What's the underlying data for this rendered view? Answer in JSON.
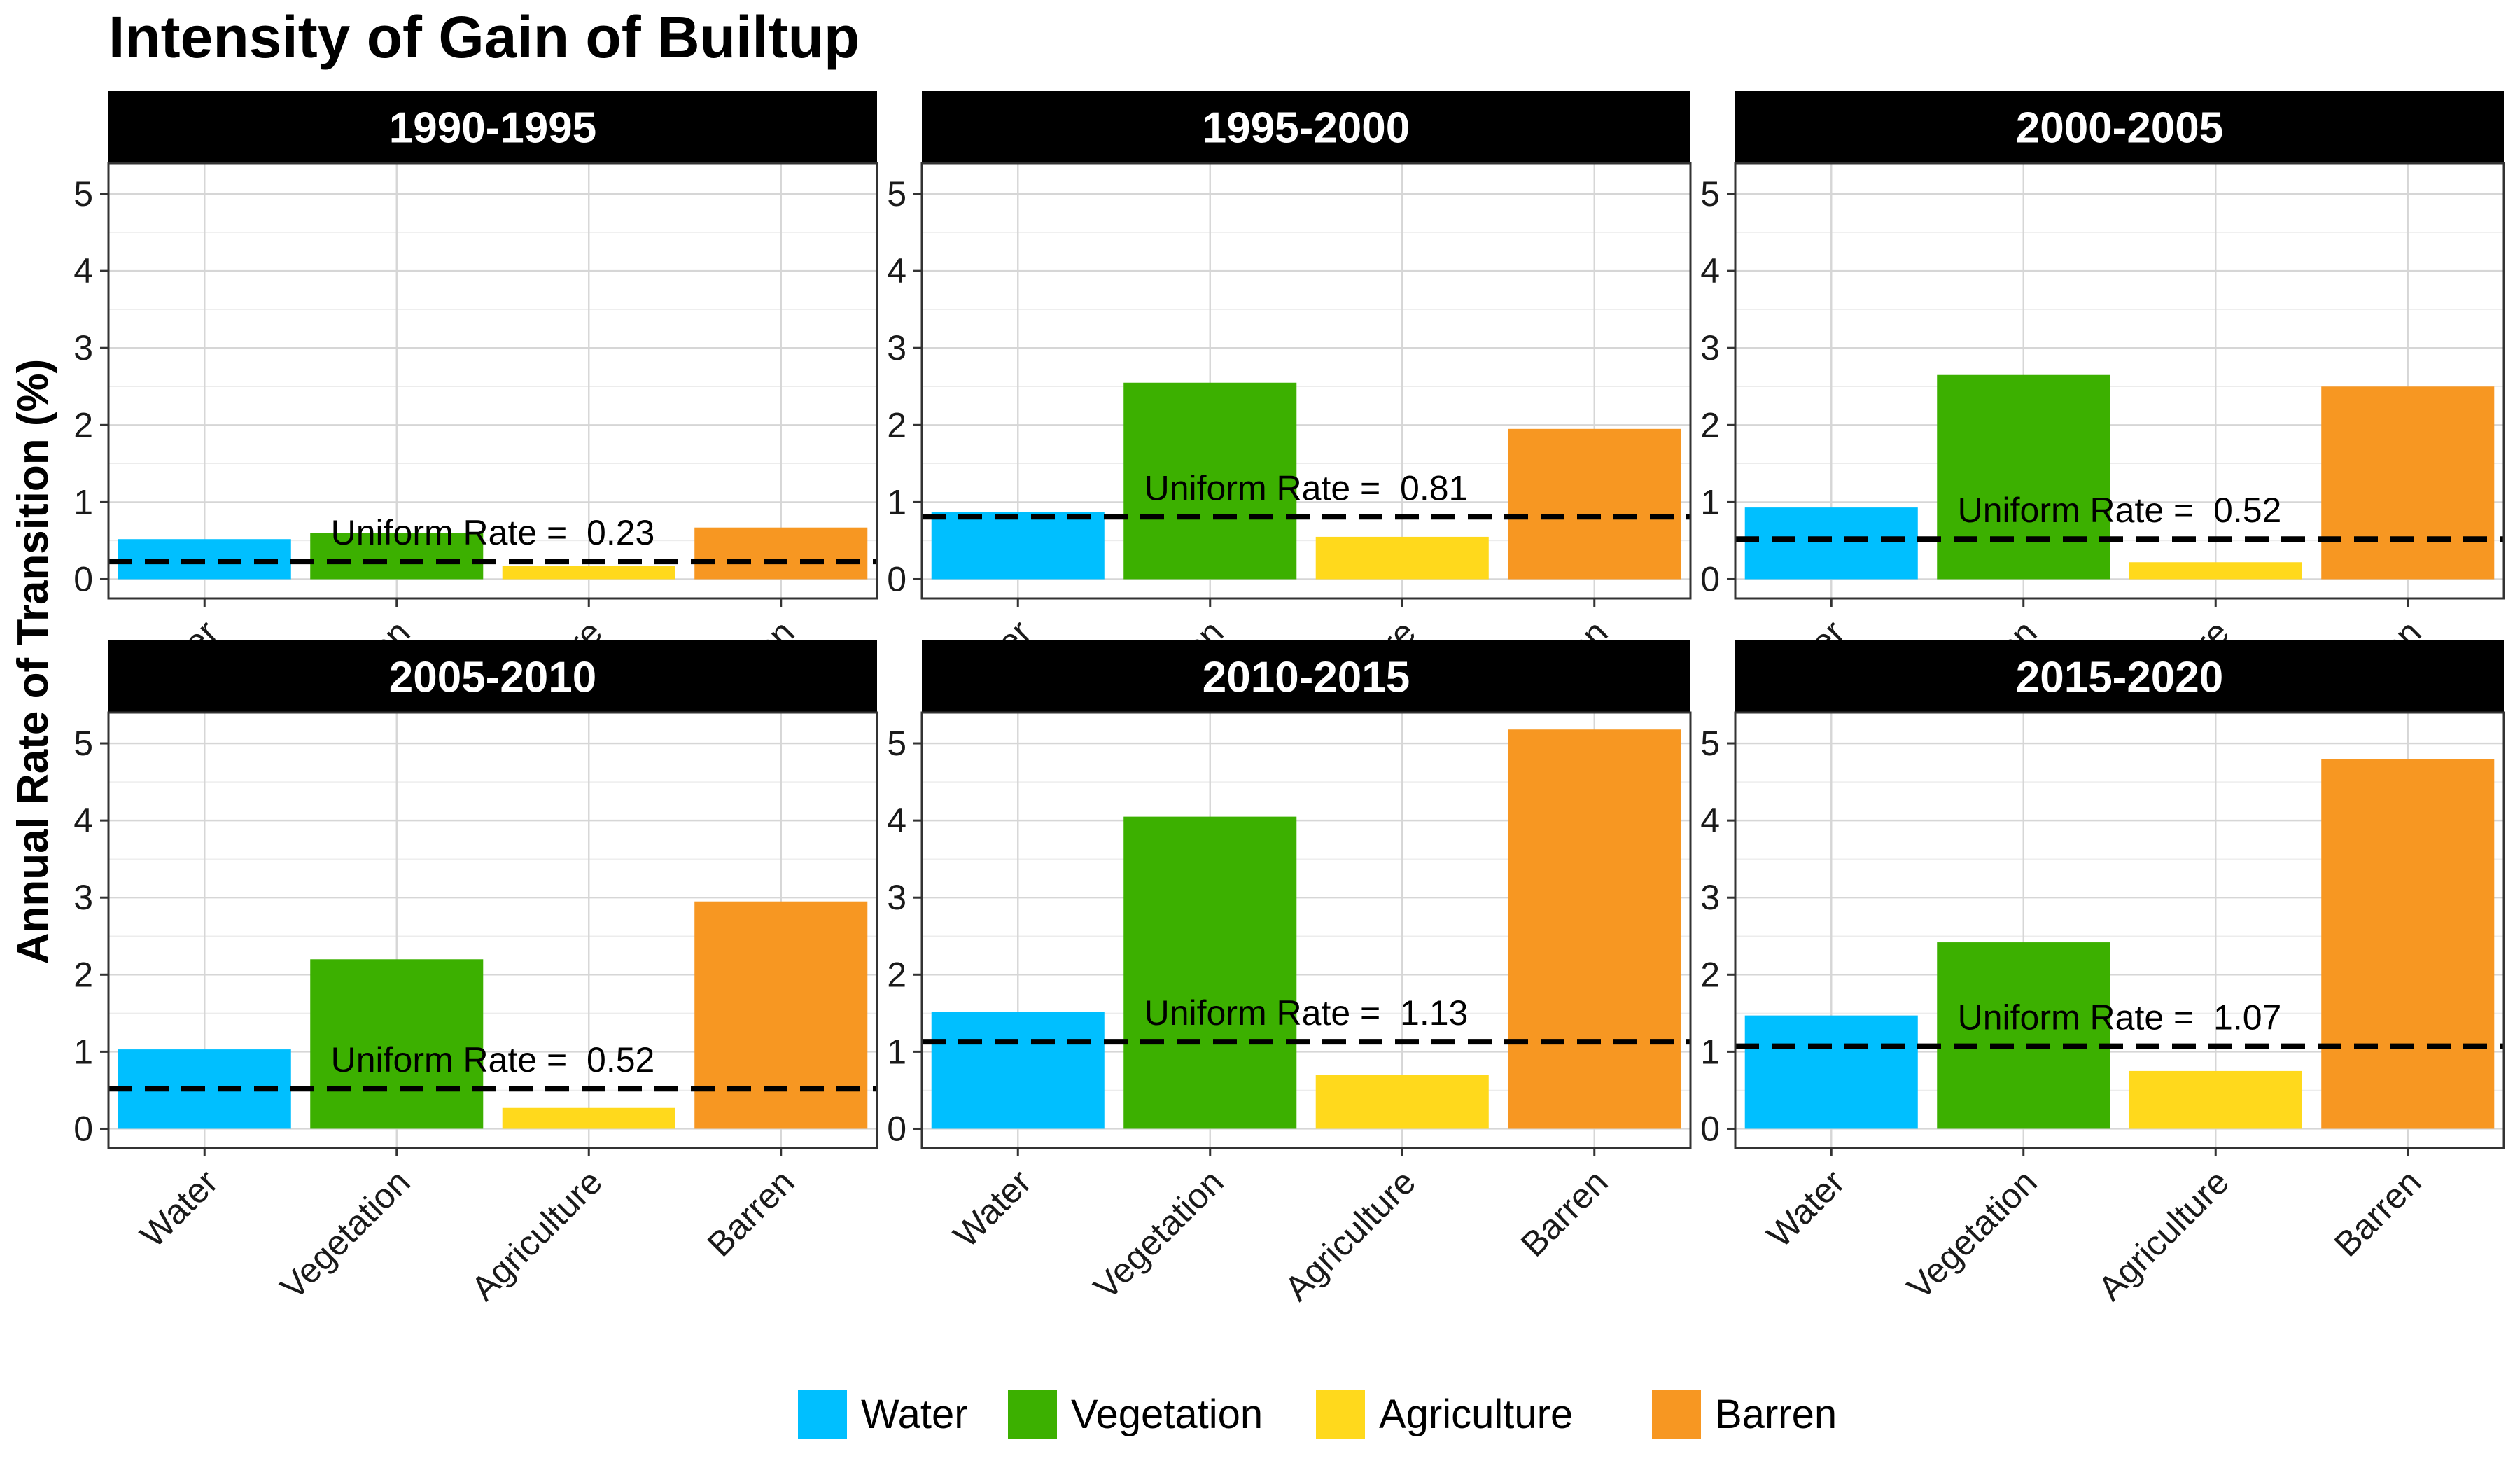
{
  "chart_data": {
    "type": "bar",
    "title": "Intensity of Gain of Builtup",
    "ylabel": "Annual Rate of Transition (%)",
    "xlabel": "",
    "ylim": [
      -0.25,
      5.4
    ],
    "y_ticks": [
      0,
      1,
      2,
      3,
      4,
      5
    ],
    "grid": true,
    "legend_position": "bottom",
    "categories": [
      "Water",
      "Vegetation",
      "Agriculture",
      "Barren"
    ],
    "colors": {
      "Water": "#00BFFF",
      "Vegetation": "#3CB000",
      "Agriculture": "#FFD91C",
      "Barren": "#F79722"
    },
    "uniform_rate_label": "Uniform Rate = ",
    "panels": [
      {
        "label": "1990-1995",
        "values": [
          0.52,
          0.6,
          0.17,
          0.67
        ],
        "uniform_rate": 0.23
      },
      {
        "label": "1995-2000",
        "values": [
          0.87,
          2.55,
          0.55,
          1.95
        ],
        "uniform_rate": 0.81
      },
      {
        "label": "2000-2005",
        "values": [
          0.93,
          2.65,
          0.22,
          2.5
        ],
        "uniform_rate": 0.52
      },
      {
        "label": "2005-2010",
        "values": [
          1.03,
          2.2,
          0.27,
          2.95
        ],
        "uniform_rate": 0.52
      },
      {
        "label": "2010-2015",
        "values": [
          1.52,
          4.05,
          0.7,
          5.18
        ],
        "uniform_rate": 1.13
      },
      {
        "label": "2015-2020",
        "values": [
          1.47,
          2.42,
          0.75,
          4.8
        ],
        "uniform_rate": 1.07
      }
    ],
    "legend": [
      "Water",
      "Vegetation",
      "Agriculture",
      "Barren"
    ]
  }
}
